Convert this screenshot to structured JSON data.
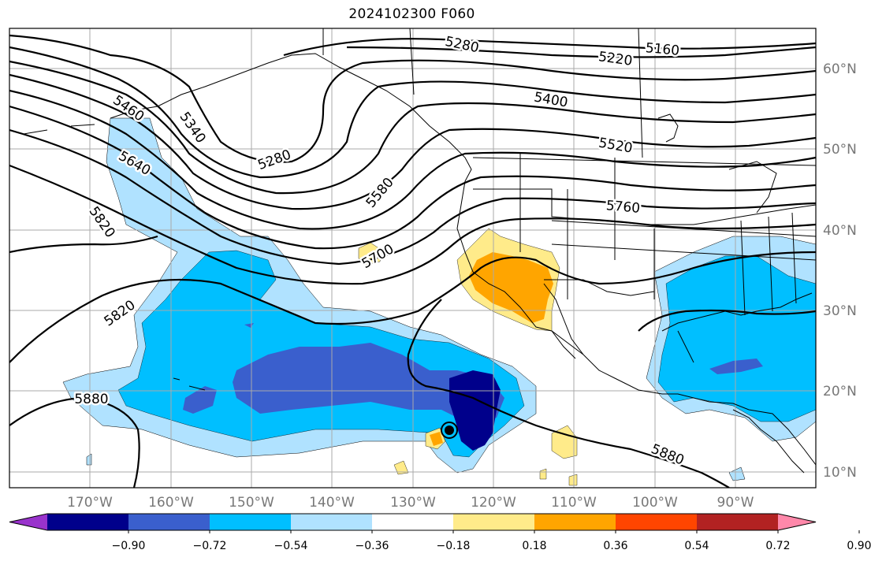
{
  "title": "2024102300 F060",
  "lon_labels": [
    "170°W",
    "160°W",
    "150°W",
    "140°W",
    "130°W",
    "120°W",
    "110°W",
    "100°W",
    "90°W"
  ],
  "lat_labels": [
    "60°N",
    "50°N",
    "40°N",
    "30°N",
    "20°N",
    "10°N"
  ],
  "colorbar": {
    "ticks": [
      "−0.90",
      "−0.72",
      "−0.54",
      "−0.36",
      "−0.18",
      "0.18",
      "0.36",
      "0.54",
      "0.72",
      "0.90"
    ],
    "colors": [
      "#9933cc",
      "#00008b",
      "#3a5fcd",
      "#00bfff",
      "#b0e2ff",
      "#ffffff",
      "#ffeb8a",
      "#ffa500",
      "#ff4500",
      "#b22222",
      "#ff88aa"
    ]
  },
  "contour_labels": [
    "5280",
    "5220",
    "5160",
    "5460",
    "5340",
    "5400",
    "5520",
    "5280",
    "5640",
    "5580",
    "5760",
    "5820",
    "5700",
    "5820",
    "5880",
    "5880"
  ],
  "contour_color": "#000000",
  "land_border_color": "#000000",
  "grid_color": "#aaaaaa"
}
